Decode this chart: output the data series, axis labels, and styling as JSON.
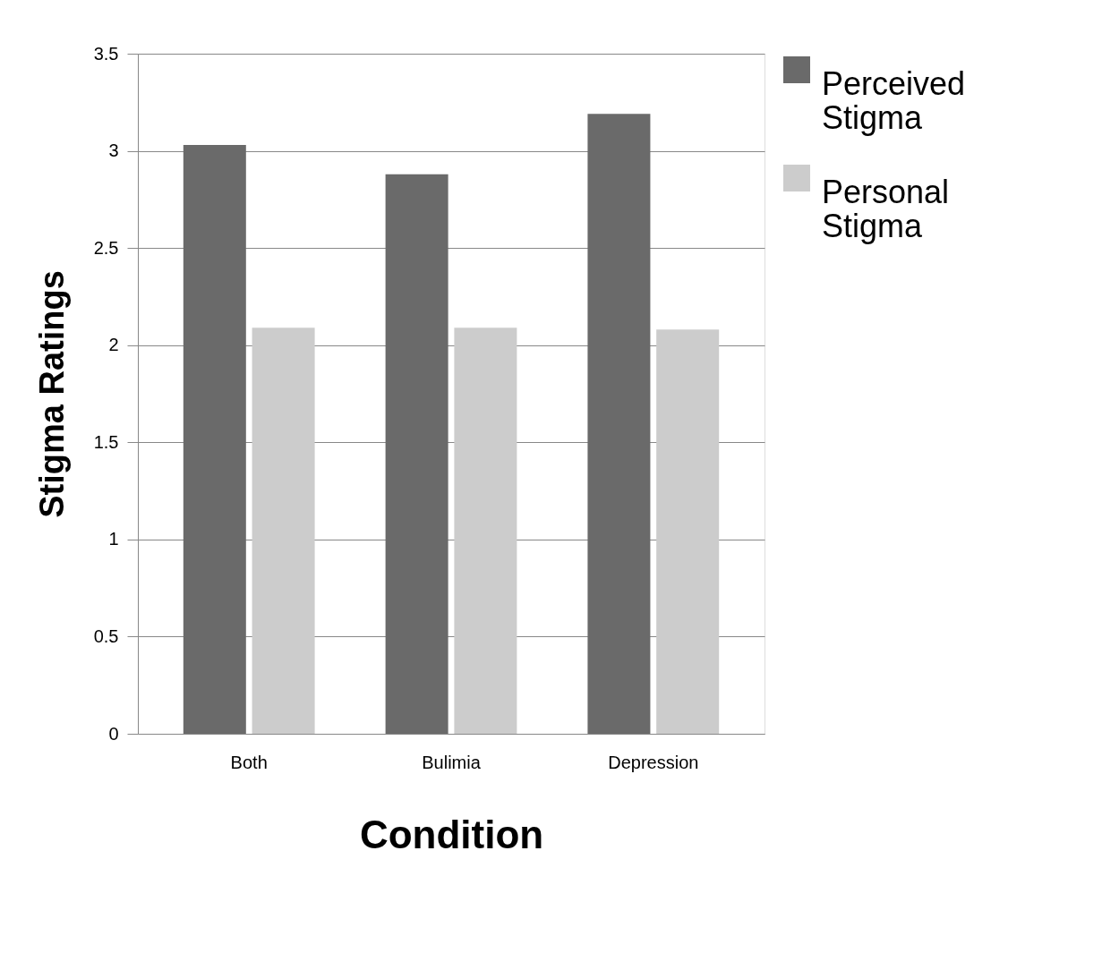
{
  "chart_data": {
    "type": "bar",
    "xlabel": "Condition",
    "ylabel": "Stigma Ratings",
    "categories": [
      "Both",
      "Bulimia",
      "Depression"
    ],
    "series": [
      {
        "name": "Perceived Stigma",
        "color": "#6a6a6a",
        "values": [
          3.03,
          2.88,
          3.19
        ]
      },
      {
        "name": "Personal Stigma",
        "color": "#cccccc",
        "values": [
          2.09,
          2.09,
          2.08
        ]
      }
    ],
    "ylim": [
      0,
      3.5
    ],
    "yticks": [
      0,
      0.5,
      1,
      1.5,
      2,
      2.5,
      3,
      3.5
    ],
    "grid": "y",
    "legend": "right"
  }
}
